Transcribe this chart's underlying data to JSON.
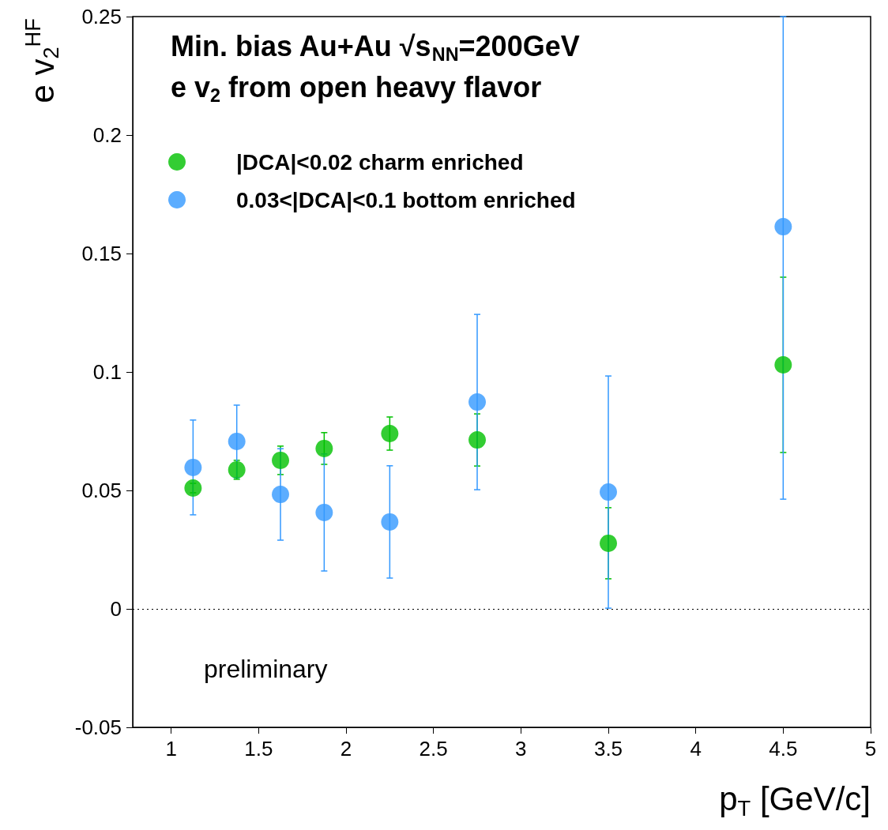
{
  "chart_data": {
    "type": "scatter",
    "title": "Min. bias Au+Au √s$_{NN}$=200GeV",
    "subtitle": "e v$_{2}$ from open heavy flavor",
    "xlabel": "p$_{T}$ [GeV/c]",
    "ylabel": "e v$_{2}$$^{HF}$",
    "annotations": [
      "preliminary"
    ],
    "marker": "circle",
    "legend": "top left",
    "grid": false,
    "xlim": [
      0.78,
      5
    ],
    "xticks": [
      1,
      1.5,
      2,
      2.5,
      3,
      3.5,
      4,
      4.5,
      5
    ],
    "ylim": [
      -0.05,
      0.25
    ],
    "yticks": [
      -0.05,
      0,
      0.05,
      0.1,
      0.15,
      0.2,
      0.25
    ],
    "ref_lines": [
      {
        "axis": "y",
        "value": 0,
        "line_style": "dotted",
        "color": "#000000"
      }
    ],
    "series": [
      {
        "name": "|DCA|<0.02 charm enriched",
        "color": "#00c000",
        "x": [
          1.125,
          1.375,
          1.625,
          1.875,
          2.25,
          2.75,
          3.5,
          4.5
        ],
        "values": [
          0.051,
          0.0587,
          0.0627,
          0.0677,
          0.074,
          0.0713,
          0.0277,
          0.103
        ],
        "errors": [
          0.002,
          0.004,
          0.006,
          0.0067,
          0.007,
          0.011,
          0.015,
          0.037
        ]
      },
      {
        "name": "0.03<|DCA|<0.1 bottom enriched",
        "color": "#3399ff",
        "x": [
          1.125,
          1.375,
          1.625,
          1.875,
          2.25,
          2.75,
          3.5,
          4.5
        ],
        "values": [
          0.0597,
          0.0707,
          0.0483,
          0.0407,
          0.0367,
          0.0873,
          0.0493,
          0.1613
        ],
        "errors": [
          0.02,
          0.0153,
          0.0193,
          0.0247,
          0.0237,
          0.037,
          0.049,
          [
            0.0463,
            0.25
          ]
        ]
      }
    ]
  }
}
